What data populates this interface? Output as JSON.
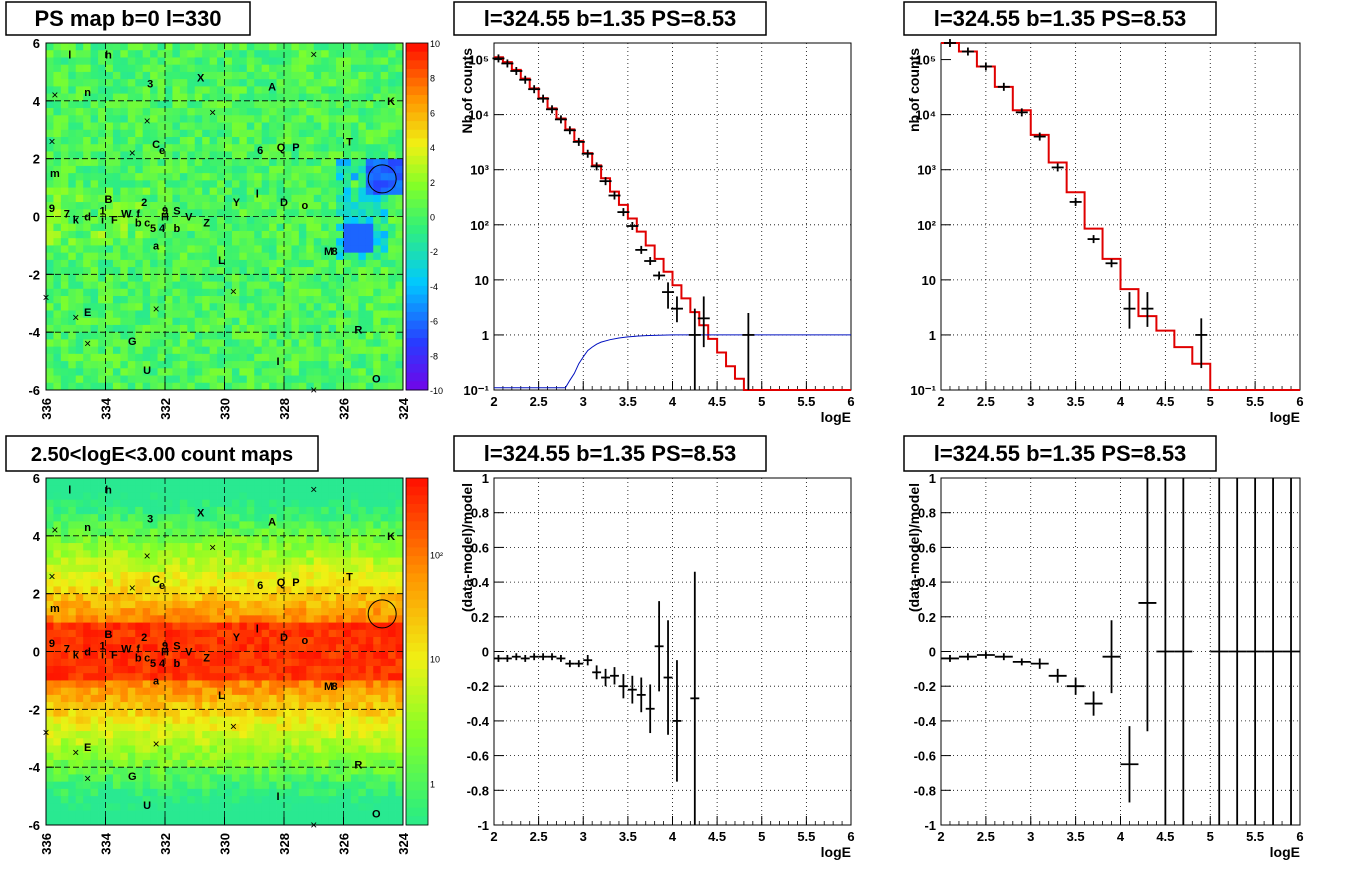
{
  "titles": {
    "p1": "PS map b=0 l=330",
    "p2": "l=324.55 b=1.35 PS=8.53",
    "p3": "l=324.55 b=1.35 PS=8.53",
    "p4": "2.50<logE<3.00 count maps",
    "p5": "l=324.55 b=1.35 PS=8.53",
    "p6": "l=324.55 b=1.35 PS=8.53"
  },
  "sources": [
    {
      "t": "l",
      "lon": 335.2,
      "lat": 5.6
    },
    {
      "t": "h",
      "lon": 333.9,
      "lat": 5.6
    },
    {
      "t": "3",
      "lon": 332.5,
      "lat": 4.6
    },
    {
      "t": "X",
      "lon": 330.8,
      "lat": 4.8
    },
    {
      "t": "A",
      "lon": 328.4,
      "lat": 4.5
    },
    {
      "t": "K",
      "lon": 324.4,
      "lat": 4.0
    },
    {
      "t": "n",
      "lon": 334.6,
      "lat": 4.3
    },
    {
      "t": "T",
      "lon": 325.8,
      "lat": 2.6
    },
    {
      "t": "C",
      "lon": 332.3,
      "lat": 2.5
    },
    {
      "t": "e",
      "lon": 332.1,
      "lat": 2.3
    },
    {
      "t": "6",
      "lon": 328.8,
      "lat": 2.3
    },
    {
      "t": "Q",
      "lon": 328.1,
      "lat": 2.4
    },
    {
      "t": "P",
      "lon": 327.6,
      "lat": 2.4
    },
    {
      "t": "m",
      "lon": 335.7,
      "lat": 1.5
    },
    {
      "t": "9",
      "lon": 335.8,
      "lat": 0.3
    },
    {
      "t": "7",
      "lon": 335.3,
      "lat": 0.1
    },
    {
      "t": "k",
      "lon": 335.0,
      "lat": -0.1
    },
    {
      "t": "d",
      "lon": 334.6,
      "lat": 0.0
    },
    {
      "t": "B",
      "lon": 333.9,
      "lat": 0.6
    },
    {
      "t": "1",
      "lon": 334.1,
      "lat": 0.2
    },
    {
      "t": "i",
      "lon": 334.1,
      "lat": -0.1
    },
    {
      "t": "F",
      "lon": 333.7,
      "lat": -0.1
    },
    {
      "t": "W",
      "lon": 333.3,
      "lat": 0.1
    },
    {
      "t": "f",
      "lon": 332.9,
      "lat": 0.1
    },
    {
      "t": "2",
      "lon": 332.7,
      "lat": 0.5
    },
    {
      "t": "b",
      "lon": 332.9,
      "lat": -0.2
    },
    {
      "t": "c",
      "lon": 332.6,
      "lat": -0.2
    },
    {
      "t": "5",
      "lon": 332.4,
      "lat": -0.4
    },
    {
      "t": "4",
      "lon": 332.1,
      "lat": -0.4
    },
    {
      "t": "H",
      "lon": 332.0,
      "lat": 0.0
    },
    {
      "t": "9",
      "lon": 332.0,
      "lat": 0.2
    },
    {
      "t": "S",
      "lon": 331.6,
      "lat": 0.2
    },
    {
      "t": "V",
      "lon": 331.2,
      "lat": 0.0
    },
    {
      "t": "Z",
      "lon": 330.6,
      "lat": -0.2
    },
    {
      "t": "b",
      "lon": 331.6,
      "lat": -0.4
    },
    {
      "t": "Y",
      "lon": 329.6,
      "lat": 0.5
    },
    {
      "t": "l",
      "lon": 328.9,
      "lat": 0.8
    },
    {
      "t": "D",
      "lon": 328.0,
      "lat": 0.5
    },
    {
      "t": "o",
      "lon": 327.3,
      "lat": 0.4
    },
    {
      "t": "a",
      "lon": 332.3,
      "lat": -1.0
    },
    {
      "t": "L",
      "lon": 330.1,
      "lat": -1.5
    },
    {
      "t": "M",
      "lon": 326.5,
      "lat": -1.2
    },
    {
      "t": "8",
      "lon": 326.3,
      "lat": -1.2
    },
    {
      "t": "E",
      "lon": 334.6,
      "lat": -3.3
    },
    {
      "t": "R",
      "lon": 325.5,
      "lat": -3.9
    },
    {
      "t": "G",
      "lon": 333.1,
      "lat": -4.3
    },
    {
      "t": "U",
      "lon": 332.6,
      "lat": -5.3
    },
    {
      "t": "I",
      "lon": 328.2,
      "lat": -5.0
    },
    {
      "t": "O",
      "lon": 324.9,
      "lat": -5.6
    }
  ],
  "crosses": [
    {
      "lon": 327.0,
      "lat": 5.6
    },
    {
      "lon": 335.7,
      "lat": 4.2
    },
    {
      "lon": 330.4,
      "lat": 3.6
    },
    {
      "lon": 332.6,
      "lat": 3.3
    },
    {
      "lon": 335.8,
      "lat": 2.6
    },
    {
      "lon": 333.1,
      "lat": 2.2
    },
    {
      "lon": 336.0,
      "lat": -2.8
    },
    {
      "lon": 329.7,
      "lat": -2.6
    },
    {
      "lon": 332.3,
      "lat": -3.2
    },
    {
      "lon": 335.0,
      "lat": -3.5
    },
    {
      "lon": 334.6,
      "lat": -4.4
    },
    {
      "lon": 327.0,
      "lat": -6.0
    }
  ],
  "circle": {
    "lon": 324.7,
    "lat": 1.3
  },
  "palette1": {
    "labels": [
      "10",
      "8",
      "6",
      "4",
      "2",
      "0",
      "-2",
      "-4",
      "-6",
      "-8",
      "-10"
    ]
  },
  "palette2": {
    "labels": [
      "10²",
      "10",
      "1"
    ]
  },
  "chart_data": [
    {
      "type": "heatmap",
      "panel": "p1",
      "title": "PS map b=0 l=330",
      "xlim": [
        336,
        324
      ],
      "ylim": [
        -6,
        6
      ],
      "xticks": [
        "336",
        "334",
        "332",
        "330",
        "328",
        "326",
        "324"
      ],
      "yticks": [
        "6",
        "4",
        "2",
        "0",
        "-2",
        "-4",
        "-6"
      ],
      "zlim": [
        -10,
        10
      ],
      "grid": true
    },
    {
      "type": "line",
      "panel": "p2",
      "title": "l=324.55 b=1.35 PS=8.53",
      "xlabel": "logE",
      "ylabel": "Nb of counts",
      "log_y": true,
      "xlim": [
        2,
        6
      ],
      "ylim": [
        0.1,
        200000
      ],
      "xticks": [
        "2",
        "2.5",
        "3",
        "3.5",
        "4",
        "4.5",
        "5",
        "5.5",
        "6"
      ],
      "yticks": [
        "10⁵",
        "10⁴",
        "10³",
        "10²",
        "10",
        "1",
        "10⁻¹"
      ],
      "model_edges": [
        2,
        2.1,
        2.2,
        2.3,
        2.4,
        2.5,
        2.6,
        2.7,
        2.8,
        2.9,
        3.0,
        3.1,
        3.2,
        3.3,
        3.4,
        3.5,
        3.6,
        3.7,
        3.8,
        3.9,
        4.0,
        4.1,
        4.2,
        4.3,
        4.4,
        4.5,
        4.6,
        4.7,
        4.8,
        4.9,
        5.0,
        6.0
      ],
      "model": [
        110000,
        90000,
        65000,
        45000,
        30000,
        20000,
        13000,
        8500,
        5400,
        3300,
        2000,
        1200,
        700,
        400,
        230,
        130,
        75,
        42,
        24,
        14,
        8,
        4.6,
        2.6,
        1.5,
        0.85,
        0.48,
        0.27,
        0.16,
        0.1,
        0.1,
        0.1
      ],
      "data_x": [
        2.05,
        2.15,
        2.25,
        2.35,
        2.45,
        2.55,
        2.65,
        2.75,
        2.85,
        2.95,
        3.05,
        3.15,
        3.25,
        3.35,
        3.45,
        3.55,
        3.65,
        3.75,
        3.85,
        3.95,
        4.05,
        4.25,
        4.35,
        4.85
      ],
      "data_y": [
        105000,
        85000,
        62000,
        43000,
        29000,
        19500,
        12500,
        8200,
        5200,
        3200,
        1950,
        1150,
        620,
        340,
        170,
        95,
        35,
        22,
        12,
        6,
        3,
        1,
        2,
        1
      ],
      "data_ylow": [
        null,
        null,
        null,
        null,
        null,
        null,
        null,
        null,
        null,
        null,
        null,
        null,
        null,
        null,
        null,
        null,
        null,
        null,
        null,
        3,
        1.7,
        0.1,
        0.6,
        0.1
      ],
      "data_yhigh": [
        null,
        null,
        null,
        null,
        null,
        null,
        null,
        null,
        null,
        null,
        null,
        null,
        null,
        null,
        null,
        null,
        null,
        null,
        null,
        9,
        5,
        3,
        5,
        2.5
      ],
      "eff_x": [
        2.0,
        2.8,
        2.85,
        2.9,
        2.95,
        3.0,
        3.05,
        3.1,
        3.15,
        3.2,
        3.3,
        3.4,
        3.5,
        3.6,
        3.7,
        3.8,
        3.9,
        4.0,
        6.0
      ],
      "eff_y": [
        0.11,
        0.11,
        0.15,
        0.2,
        0.3,
        0.4,
        0.52,
        0.6,
        0.68,
        0.74,
        0.82,
        0.88,
        0.92,
        0.95,
        0.97,
        0.98,
        0.99,
        1.0,
        1.0
      ]
    },
    {
      "type": "line",
      "panel": "p3",
      "title": "l=324.55 b=1.35 PS=8.53",
      "xlabel": "logE",
      "ylabel": "nb of counts",
      "log_y": true,
      "xlim": [
        2,
        6
      ],
      "ylim": [
        0.1,
        200000
      ],
      "xticks": [
        "2",
        "2.5",
        "3",
        "3.5",
        "4",
        "4.5",
        "5",
        "5.5",
        "6"
      ],
      "yticks": [
        "10⁵",
        "10⁴",
        "10³",
        "10²",
        "10",
        "1",
        "10⁻¹"
      ],
      "model_edges": [
        2,
        2.2,
        2.4,
        2.6,
        2.8,
        3.0,
        3.2,
        3.4,
        3.6,
        3.8,
        4.0,
        4.2,
        4.4,
        4.6,
        4.8,
        5.0,
        6.0
      ],
      "model": [
        200000,
        140000,
        75000,
        32000,
        12000,
        4300,
        1350,
        390,
        85,
        24,
        6.8,
        2.2,
        1.2,
        0.6,
        0.3,
        0.1
      ],
      "data_x": [
        2.1,
        2.3,
        2.5,
        2.7,
        2.9,
        3.1,
        3.3,
        3.5,
        3.7,
        3.9,
        4.1,
        4.3,
        4.9
      ],
      "data_y": [
        200000,
        140000,
        75000,
        32000,
        11000,
        4000,
        1100,
        260,
        55,
        20,
        3,
        3,
        1
      ],
      "data_ylow": [
        null,
        null,
        null,
        null,
        null,
        null,
        null,
        null,
        null,
        null,
        1.3,
        1.4,
        0.25
      ],
      "data_yhigh": [
        null,
        null,
        null,
        null,
        null,
        null,
        null,
        null,
        null,
        null,
        6,
        6,
        2
      ]
    },
    {
      "type": "heatmap",
      "panel": "p4",
      "title": "2.50<logE<3.00 count maps",
      "xlim": [
        336,
        324
      ],
      "ylim": [
        -6,
        6
      ],
      "xticks": [
        "336",
        "334",
        "332",
        "330",
        "328",
        "326",
        "324"
      ],
      "yticks": [
        "6",
        "4",
        "2",
        "0",
        "-2",
        "-4",
        "-6"
      ],
      "zscale": "log",
      "grid": true
    },
    {
      "type": "scatter",
      "panel": "p5",
      "title": "l=324.55 b=1.35 PS=8.53",
      "xlabel": "logE",
      "ylabel": "(data-model)/model",
      "xlim": [
        2,
        6
      ],
      "ylim": [
        -1,
        1
      ],
      "xticks": [
        "2",
        "2.5",
        "3",
        "3.5",
        "4",
        "4.5",
        "5",
        "5.5",
        "6"
      ],
      "yticks": [
        "1",
        "0.8",
        "0.6",
        "0.4",
        "0.2",
        "0",
        "-0.2",
        "-0.4",
        "-0.6",
        "-0.8",
        "-1"
      ],
      "x": [
        2.05,
        2.15,
        2.25,
        2.35,
        2.45,
        2.55,
        2.65,
        2.75,
        2.85,
        2.95,
        3.05,
        3.15,
        3.25,
        3.35,
        3.45,
        3.55,
        3.65,
        3.75,
        3.85,
        3.95,
        4.05,
        4.25
      ],
      "y": [
        -0.04,
        -0.04,
        -0.03,
        -0.04,
        -0.03,
        -0.03,
        -0.03,
        -0.04,
        -0.07,
        -0.07,
        -0.05,
        -0.12,
        -0.15,
        -0.14,
        -0.2,
        -0.22,
        -0.25,
        -0.33,
        0.03,
        -0.15,
        -0.4,
        -0.27
      ],
      "err": [
        0.02,
        0.02,
        0.02,
        0.02,
        0.02,
        0.02,
        0.02,
        0.02,
        0.02,
        0.02,
        0.03,
        0.04,
        0.05,
        0.05,
        0.07,
        0.08,
        0.1,
        0.14,
        0.26,
        0.33,
        0.35,
        0.73
      ],
      "xerr": 0.05
    },
    {
      "type": "scatter",
      "panel": "p6",
      "title": "l=324.55 b=1.35 PS=8.53",
      "xlabel": "logE",
      "ylabel": "(data-model)/model",
      "xlim": [
        2,
        6
      ],
      "ylim": [
        -1,
        1
      ],
      "xticks": [
        "2",
        "2.5",
        "3",
        "3.5",
        "4",
        "4.5",
        "5",
        "5.5",
        "6"
      ],
      "yticks": [
        "1",
        "0.8",
        "0.6",
        "0.4",
        "0.2",
        "0",
        "-0.2",
        "-0.4",
        "-0.6",
        "-0.8",
        "-1"
      ],
      "x": [
        2.1,
        2.3,
        2.5,
        2.7,
        2.9,
        3.1,
        3.3,
        3.5,
        3.7,
        3.9,
        4.1,
        4.3,
        4.5,
        4.7,
        5.1,
        5.3,
        5.5,
        5.7,
        5.9
      ],
      "y": [
        -0.04,
        -0.03,
        -0.02,
        -0.03,
        -0.06,
        -0.07,
        -0.14,
        -0.2,
        -0.3,
        -0.03,
        -0.65,
        0.28,
        0,
        0,
        0,
        0,
        0,
        0,
        0
      ],
      "err": [
        0.02,
        0.02,
        0.02,
        0.02,
        0.02,
        0.03,
        0.04,
        0.05,
        0.07,
        0.21,
        0.22,
        0.74,
        1.4,
        1.3,
        2,
        2,
        2,
        2,
        2
      ],
      "xerr": 0.1
    }
  ]
}
